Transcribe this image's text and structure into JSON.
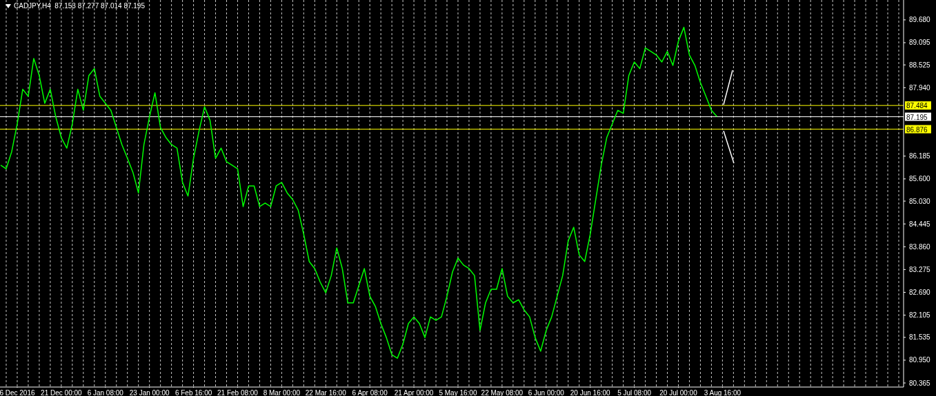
{
  "chart_data": {
    "type": "line",
    "title": "CADJPY,H4  87.153 87.277 87.014 87.195",
    "categories": [
      null,
      null,
      null,
      "6 Dec 2016",
      null,
      null,
      null,
      null,
      null,
      null,
      null,
      "21 Dec 00:00",
      null,
      null,
      null,
      null,
      null,
      null,
      null,
      "6 Jan 08:00",
      null,
      null,
      null,
      null,
      null,
      null,
      null,
      "23 Jan 00:00",
      null,
      null,
      null,
      null,
      null,
      null,
      null,
      "6 Feb 16:00",
      null,
      null,
      null,
      null,
      null,
      null,
      null,
      "21 Feb 08:00",
      null,
      null,
      null,
      null,
      null,
      null,
      null,
      "8 Mar 00:00",
      null,
      null,
      null,
      null,
      null,
      null,
      null,
      "22 Mar 16:00",
      null,
      null,
      null,
      null,
      null,
      null,
      null,
      "6 Apr 08:00",
      null,
      null,
      null,
      null,
      null,
      null,
      null,
      "21 Apr 00:00",
      null,
      null,
      null,
      null,
      null,
      null,
      null,
      "5 May 16:00",
      null,
      null,
      null,
      null,
      null,
      null,
      null,
      "22 May 08:00",
      null,
      null,
      null,
      null,
      null,
      null,
      null,
      "6 Jun 00:00",
      null,
      null,
      null,
      null,
      null,
      null,
      null,
      "20 Jun 16:00",
      null,
      null,
      null,
      null,
      null,
      null,
      null,
      "5 Jul 08:00",
      null,
      null,
      null,
      null,
      null,
      null,
      null,
      "20 Jul 00:00",
      null,
      null,
      null,
      null,
      null,
      null,
      null,
      "3 Aug 16:00",
      null,
      null,
      null,
      null,
      null,
      null,
      null,
      null,
      null,
      null,
      null,
      null,
      null,
      null,
      null,
      null,
      null,
      null,
      null,
      null,
      null,
      null,
      null,
      null,
      null,
      null,
      null,
      null,
      null,
      null,
      null,
      null
    ],
    "series": [
      {
        "color": "#00ff00",
        "values": [
          85.95,
          85.86,
          86.3,
          87.01,
          87.9,
          87.72,
          88.69,
          88.25,
          87.54,
          87.9,
          87.19,
          86.66,
          86.39,
          87.01,
          87.9,
          87.36,
          88.25,
          88.43,
          87.72,
          87.54,
          87.36,
          86.92,
          86.48,
          86.13,
          85.77,
          85.24,
          86.48,
          87.19,
          87.81,
          86.92,
          86.66,
          86.48,
          86.39,
          85.51,
          85.16,
          86.13,
          86.83,
          87.45,
          87.1,
          86.13,
          86.39,
          86.04,
          85.95,
          85.86,
          84.89,
          85.42,
          85.42,
          84.89,
          84.98,
          84.89,
          85.42,
          85.51,
          85.24,
          85.07,
          84.8,
          84.18,
          83.48,
          83.3,
          82.95,
          82.68,
          83.12,
          83.83,
          83.3,
          82.42,
          82.42,
          82.86,
          83.3,
          82.59,
          82.33,
          81.89,
          81.53,
          81.09,
          81.0,
          81.36,
          81.89,
          82.06,
          81.89,
          81.53,
          82.06,
          81.97,
          82.06,
          82.59,
          83.21,
          83.57,
          83.39,
          83.3,
          83.12,
          81.71,
          82.42,
          82.77,
          82.77,
          83.3,
          82.59,
          82.42,
          82.5,
          82.24,
          82.06,
          81.53,
          81.18,
          81.71,
          82.06,
          82.59,
          83.12,
          84.01,
          84.36,
          83.65,
          83.48,
          84.18,
          85.07,
          85.95,
          86.66,
          87.01,
          87.36,
          87.28,
          88.25,
          88.6,
          88.43,
          88.96,
          88.87,
          88.78,
          88.6,
          88.87,
          88.51,
          89.13,
          89.49,
          88.78,
          88.51,
          88.07,
          87.72,
          87.36,
          87.2,
          null,
          null,
          null,
          null,
          null,
          null,
          null,
          null,
          null,
          null,
          null,
          null,
          null,
          null,
          null,
          null,
          null,
          null,
          null,
          null,
          null,
          null,
          null,
          null,
          null,
          null,
          null,
          null,
          null,
          null,
          null,
          null,
          null
        ]
      }
    ],
    "ylim": [
      80.26,
      90.19
    ],
    "yticks": [
      {
        "value": 80.365,
        "label": "80.365"
      },
      {
        "value": 80.95,
        "label": "80.950"
      },
      {
        "value": 81.535,
        "label": "81.535"
      },
      {
        "value": 82.105,
        "label": "82.105"
      },
      {
        "value": 82.69,
        "label": "82.690"
      },
      {
        "value": 83.275,
        "label": "83.275"
      },
      {
        "value": 83.86,
        "label": "83.860"
      },
      {
        "value": 84.445,
        "label": "84.445"
      },
      {
        "value": 85.03,
        "label": "85.030"
      },
      {
        "value": 85.6,
        "label": "85.600"
      },
      {
        "value": 86.185,
        "label": "86.185"
      },
      {
        "value": 87.94,
        "label": "87.940"
      },
      {
        "value": 88.525,
        "label": "88.525"
      },
      {
        "value": 89.095,
        "label": "89.095"
      },
      {
        "value": 89.68,
        "label": "89.680"
      }
    ],
    "grid": "x",
    "ref_lines": [
      {
        "axis": "y",
        "value": 87.484,
        "label": "87.484",
        "color": "#ffff00"
      },
      {
        "axis": "y",
        "value": 87.195,
        "label": "87.195",
        "color": "#ffffff"
      },
      {
        "axis": "y",
        "value": 86.876,
        "label": "86.876",
        "color": "#ffff00"
      }
    ]
  }
}
